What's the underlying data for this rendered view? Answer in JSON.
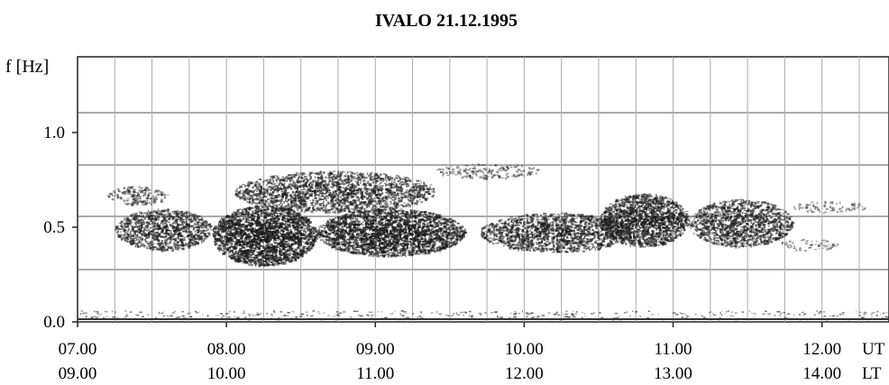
{
  "chart_data": {
    "type": "heatmap",
    "title": "IVALO  21.12.1995",
    "ylabel": "f [Hz]",
    "ylim": [
      0.0,
      1.4
    ],
    "xlim": [
      7.0,
      12.45
    ],
    "y_ticks": [
      {
        "value": 0.0,
        "label": "0.0"
      },
      {
        "value": 0.5,
        "label": "0.5"
      },
      {
        "value": 1.0,
        "label": "1.0"
      }
    ],
    "ut_ticks": [
      {
        "value": 7.0,
        "label": "07.00"
      },
      {
        "value": 8.0,
        "label": "08.00"
      },
      {
        "value": 9.0,
        "label": "09.00"
      },
      {
        "value": 10.0,
        "label": "10.00"
      },
      {
        "value": 11.0,
        "label": "11.00"
      },
      {
        "value": 12.0,
        "label": "12.00"
      }
    ],
    "lt_ticks": [
      {
        "value": 7.0,
        "label": "09.00"
      },
      {
        "value": 8.0,
        "label": "10.00"
      },
      {
        "value": 9.0,
        "label": "11.00"
      },
      {
        "value": 10.0,
        "label": "12.00"
      },
      {
        "value": 11.0,
        "label": "13.00"
      },
      {
        "value": 12.0,
        "label": "14.00"
      }
    ],
    "ut_label": "UT",
    "lt_label": "LT",
    "grid": true,
    "color": "#1a1a1a",
    "activity_bands": [
      {
        "x_start": 7.2,
        "x_end": 7.6,
        "f_low": 0.62,
        "f_high": 0.72,
        "intensity": 0.35
      },
      {
        "x_start": 7.25,
        "x_end": 7.9,
        "f_low": 0.38,
        "f_high": 0.6,
        "intensity": 0.6
      },
      {
        "x_start": 7.9,
        "x_end": 8.6,
        "f_low": 0.3,
        "f_high": 0.62,
        "intensity": 0.85
      },
      {
        "x_start": 8.05,
        "x_end": 9.4,
        "f_low": 0.58,
        "f_high": 0.8,
        "intensity": 0.55
      },
      {
        "x_start": 8.6,
        "x_end": 9.6,
        "f_low": 0.35,
        "f_high": 0.6,
        "intensity": 0.8
      },
      {
        "x_start": 9.4,
        "x_end": 10.1,
        "f_low": 0.76,
        "f_high": 0.84,
        "intensity": 0.25
      },
      {
        "x_start": 9.7,
        "x_end": 10.7,
        "f_low": 0.37,
        "f_high": 0.58,
        "intensity": 0.6
      },
      {
        "x_start": 10.5,
        "x_end": 11.1,
        "f_low": 0.4,
        "f_high": 0.68,
        "intensity": 0.75
      },
      {
        "x_start": 11.1,
        "x_end": 11.8,
        "f_low": 0.4,
        "f_high": 0.65,
        "intensity": 0.6
      },
      {
        "x_start": 11.8,
        "x_end": 12.3,
        "f_low": 0.58,
        "f_high": 0.64,
        "intensity": 0.2
      },
      {
        "x_start": 11.7,
        "x_end": 12.1,
        "f_low": 0.38,
        "f_high": 0.44,
        "intensity": 0.2
      }
    ]
  }
}
